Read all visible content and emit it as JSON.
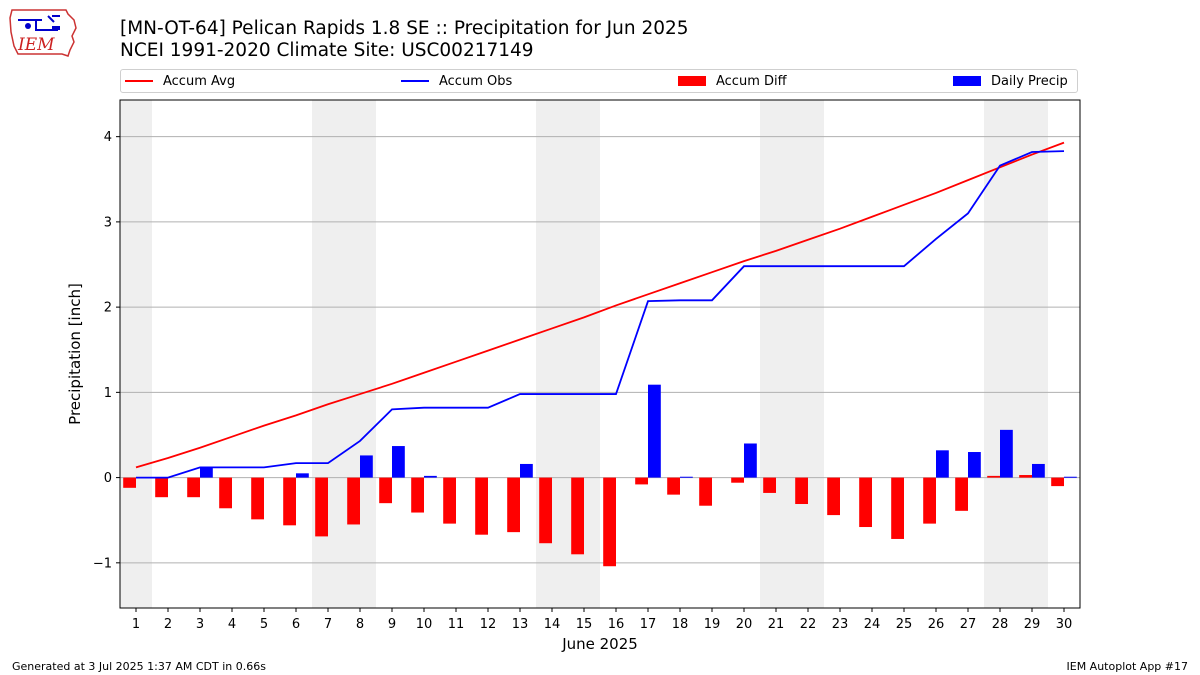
{
  "header": {
    "logo_text": "IEM",
    "title_line1": "[MN-OT-64] Pelican Rapids 1.8 SE :: Precipitation for Jun 2025",
    "title_line2": "NCEI 1991-2020 Climate Site: USC00217149"
  },
  "footer": {
    "generated": "Generated at 3 Jul 2025 1:37 AM CDT in 0.66s",
    "app": "IEM Autoplot App #17"
  },
  "colors": {
    "avg": "#ff0000",
    "obs": "#0000ff",
    "diff": "#ff0000",
    "daily": "#0000ff",
    "weekend_band": "#efefef",
    "grid": "#b0b0b0"
  },
  "chart_data": {
    "type": "bar",
    "title": "",
    "xlabel": "June 2025",
    "ylabel": "Precipitation [inch]",
    "xlim": [
      0.5,
      30.5
    ],
    "ylim": [
      -1.53,
      4.43
    ],
    "yticks": [
      -1,
      0,
      1,
      2,
      3,
      4
    ],
    "ytick_labels": [
      "−1",
      "0",
      "1",
      "2",
      "3",
      "4"
    ],
    "legend_position": "top",
    "grid": "horizontal",
    "x": [
      1,
      2,
      3,
      4,
      5,
      6,
      7,
      8,
      9,
      10,
      11,
      12,
      13,
      14,
      15,
      16,
      17,
      18,
      19,
      20,
      21,
      22,
      23,
      24,
      25,
      26,
      27,
      28,
      29,
      30
    ],
    "shaded_day_ranges": [
      [
        0.5,
        1.5
      ],
      [
        6.5,
        8.5
      ],
      [
        13.5,
        15.5
      ],
      [
        20.5,
        22.5
      ],
      [
        27.5,
        29.5
      ]
    ],
    "series": [
      {
        "name": "Accum Avg",
        "kind": "line",
        "values": [
          0.12,
          0.23,
          0.35,
          0.48,
          0.61,
          0.73,
          0.86,
          0.98,
          1.1,
          1.23,
          1.36,
          1.49,
          1.62,
          1.75,
          1.88,
          2.02,
          2.15,
          2.28,
          2.41,
          2.54,
          2.66,
          2.79,
          2.92,
          3.06,
          3.2,
          3.34,
          3.49,
          3.64,
          3.79,
          3.93
        ]
      },
      {
        "name": "Accum Obs",
        "kind": "line",
        "values": [
          0.0,
          0.0,
          0.12,
          0.12,
          0.12,
          0.17,
          0.17,
          0.43,
          0.8,
          0.82,
          0.82,
          0.82,
          0.98,
          0.98,
          0.98,
          0.98,
          2.07,
          2.08,
          2.08,
          2.48,
          2.48,
          2.48,
          2.48,
          2.48,
          2.48,
          2.8,
          3.1,
          3.66,
          3.82,
          3.83
        ]
      },
      {
        "name": "Accum Diff",
        "kind": "bar",
        "values": [
          -0.12,
          -0.23,
          -0.23,
          -0.36,
          -0.49,
          -0.56,
          -0.69,
          -0.55,
          -0.3,
          -0.41,
          -0.54,
          -0.67,
          -0.64,
          -0.77,
          -0.9,
          -1.04,
          -0.08,
          -0.2,
          -0.33,
          -0.06,
          -0.18,
          -0.31,
          -0.44,
          -0.58,
          -0.72,
          -0.54,
          -0.39,
          0.02,
          0.03,
          -0.1
        ]
      },
      {
        "name": "Daily Precip",
        "kind": "bar",
        "values": [
          0.0,
          0.0,
          0.12,
          0.0,
          0.0,
          0.05,
          0.0,
          0.26,
          0.37,
          0.02,
          0.0,
          0.0,
          0.16,
          0.0,
          0.0,
          0.0,
          1.09,
          0.01,
          0.0,
          0.4,
          0.0,
          0.0,
          0.0,
          0.0,
          0.0,
          0.32,
          0.3,
          0.56,
          0.16,
          0.01
        ]
      }
    ]
  }
}
